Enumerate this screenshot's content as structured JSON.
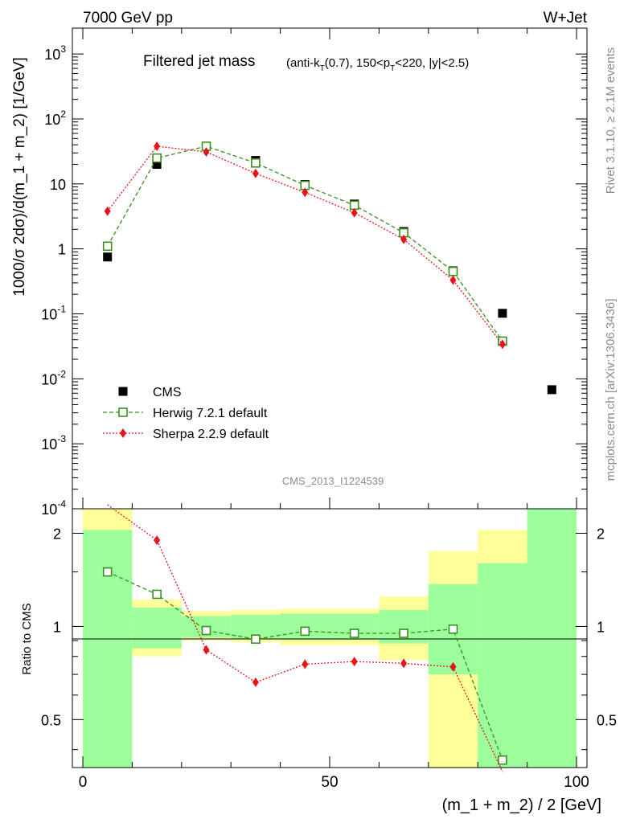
{
  "header": {
    "left": "7000 GeV pp",
    "right": "W+Jet"
  },
  "side": {
    "rivet": "Rivet 3.1.10, ≥ 2.1M events",
    "source": "mcplots.cern.ch [arXiv:1306.3436]"
  },
  "watermark": "CMS_2013_I1224539",
  "chart_data": {
    "type": "scatter",
    "title": "Filtered jet mass",
    "subtitle": "(anti-kT(0.7), 150<pT<220, |y|<2.5)",
    "xlabel": "(m_1 + m_2) / 2 [GeV]",
    "ylabel": "1000/σ 2dσ)/d(m_1 + m_2) [1/GeV]",
    "ratio_ylabel": "Ratio to CMS",
    "xlim": [
      0,
      100
    ],
    "ylim": [
      0.0001,
      2500
    ],
    "ratio_ylim": [
      0.35,
      2.4
    ],
    "y_scale": "log",
    "x_ticks": [
      "0",
      "50",
      "100"
    ],
    "ratio_ticks": [
      "0.5",
      "1",
      "2"
    ],
    "legend_position": "bottom-left",
    "x": [
      5,
      15,
      25,
      35,
      45,
      55,
      65,
      75,
      85,
      95
    ],
    "series": [
      {
        "name": "CMS",
        "color": "#000000",
        "marker": "square-filled",
        "values": [
          0.75,
          20,
          38,
          23,
          9.8,
          4.9,
          1.85,
          0.46,
          0.102,
          0.0068
        ]
      },
      {
        "name": "Herwig 7.2.1 default",
        "color": "#3a8f1e",
        "marker": "square-open",
        "line": "dashed",
        "values": [
          1.1,
          25,
          38,
          21,
          9.5,
          4.7,
          1.77,
          0.45,
          0.038
        ]
      },
      {
        "name": "Sherpa 2.2.9 default",
        "color": "#e8141b",
        "marker": "diamond",
        "line": "dotted",
        "values": [
          3.8,
          38,
          31,
          14.5,
          7.4,
          3.6,
          1.4,
          0.33,
          0.034
        ]
      }
    ],
    "ratio_series": [
      {
        "name": "Herwig 7.2.1 default",
        "values": [
          1.5,
          1.27,
          0.97,
          0.91,
          0.965,
          0.95,
          0.95,
          0.98,
          0.37
        ]
      },
      {
        "name": "Sherpa 2.2.9 default",
        "values": [
          5.1,
          1.9,
          0.84,
          0.66,
          0.755,
          0.77,
          0.76,
          0.74,
          0.33
        ]
      }
    ],
    "uncertainty_bands": [
      {
        "x0": 0,
        "x1": 10,
        "stat": [
          0.35,
          2.05
        ],
        "total": [
          0.35,
          2.4
        ]
      },
      {
        "x0": 10,
        "x1": 20,
        "stat": [
          0.85,
          1.15
        ],
        "total": [
          0.8,
          1.22
        ]
      },
      {
        "x0": 20,
        "x1": 30,
        "stat": [
          0.92,
          1.08
        ],
        "total": [
          0.9,
          1.12
        ]
      },
      {
        "x0": 30,
        "x1": 40,
        "stat": [
          0.91,
          1.09
        ],
        "total": [
          0.89,
          1.13
        ]
      },
      {
        "x0": 40,
        "x1": 50,
        "stat": [
          0.905,
          1.1
        ],
        "total": [
          0.87,
          1.14
        ]
      },
      {
        "x0": 50,
        "x1": 60,
        "stat": [
          0.905,
          1.1
        ],
        "total": [
          0.87,
          1.14
        ]
      },
      {
        "x0": 60,
        "x1": 70,
        "stat": [
          0.88,
          1.13
        ],
        "total": [
          0.78,
          1.25
        ]
      },
      {
        "x0": 70,
        "x1": 80,
        "stat": [
          0.7,
          1.37
        ],
        "total": [
          0.35,
          1.75
        ]
      },
      {
        "x0": 80,
        "x1": 90,
        "stat": [
          0.35,
          1.6
        ],
        "total": [
          0.35,
          2.05
        ]
      },
      {
        "x0": 90,
        "x1": 100,
        "stat": [
          0.35,
          2.4
        ],
        "total": [
          0.35,
          2.4
        ]
      }
    ],
    "band_colors": {
      "stat": "#9cff9c",
      "total": "#ffff99"
    }
  }
}
